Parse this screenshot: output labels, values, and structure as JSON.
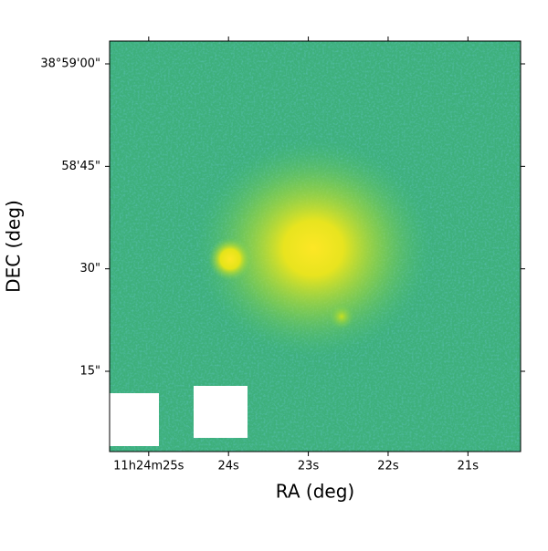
{
  "chart_data": {
    "type": "image",
    "xlabel": "RA (deg)",
    "ylabel": "DEC (deg)",
    "xlim": [
      25.49,
      20.34
    ],
    "xticks": [
      {
        "value": 25,
        "label": "11h24m25s"
      },
      {
        "value": 24,
        "label": "24s"
      },
      {
        "value": 23,
        "label": "23s"
      },
      {
        "value": 22,
        "label": "22s"
      },
      {
        "value": 21,
        "label": "21s"
      }
    ],
    "ylim": [
      3.25,
      63.34
    ],
    "yticks": [
      {
        "value": 60,
        "label": "38°59'00\""
      },
      {
        "value": 45,
        "label": "58'45\""
      },
      {
        "value": 30,
        "label": "30\""
      },
      {
        "value": 15,
        "label": "15\""
      }
    ],
    "colormap": "viridis"
  }
}
